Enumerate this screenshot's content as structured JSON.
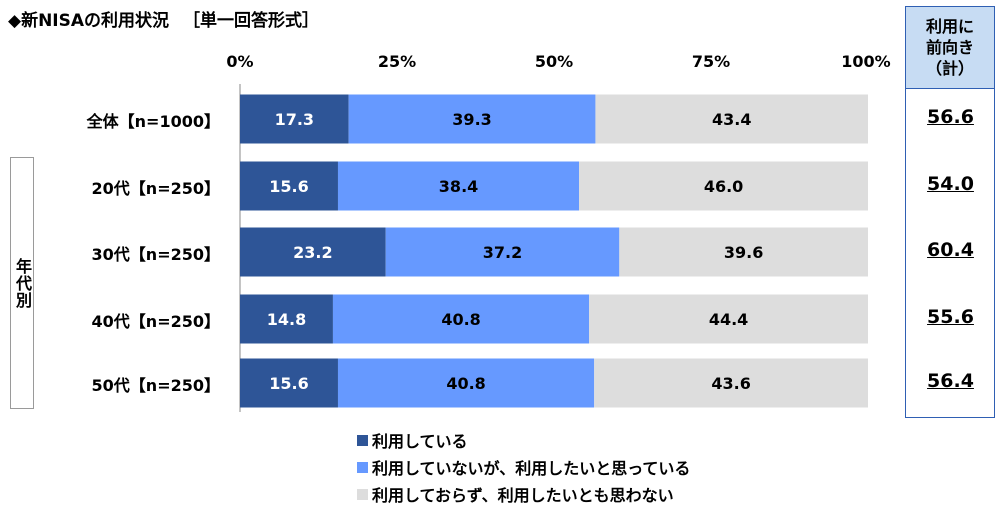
{
  "title": "◆新NISAの利用状況",
  "subtitle": "［単一回答形式］",
  "group_label": "年代別",
  "net_header": "利用に\n前向き\n（計）",
  "colors": {
    "using": "#2e5597",
    "want": "#6699ff",
    "not": "#dddddd",
    "net_header_bg": "#c7dcf3",
    "net_border": "#2f5fb3"
  },
  "chart_data": {
    "type": "bar",
    "orientation": "horizontal",
    "stacked": true,
    "xlim": [
      0,
      100
    ],
    "tick_labels": [
      "0%",
      "25%",
      "50%",
      "75%",
      "100%"
    ],
    "categories": [
      "全体【n=1000】",
      "20代【n=250】",
      "30代【n=250】",
      "40代【n=250】",
      "50代【n=250】"
    ],
    "series": [
      {
        "name": "利用している",
        "values": [
          17.3,
          15.6,
          23.2,
          14.8,
          15.6
        ],
        "labels": [
          "17.3",
          "15.6",
          "23.2",
          "14.8",
          "15.6"
        ]
      },
      {
        "name": "利用していないが、利用したいと思っている",
        "values": [
          39.3,
          38.4,
          37.2,
          40.8,
          40.8
        ],
        "labels": [
          "39.3",
          "38.4",
          "37.2",
          "40.8",
          "40.8"
        ]
      },
      {
        "name": "利用しておらず、利用したいとも思わない",
        "values": [
          43.4,
          46.0,
          39.6,
          44.4,
          43.6
        ],
        "labels": [
          "43.4",
          "46.0",
          "39.6",
          "44.4",
          "43.6"
        ]
      }
    ],
    "net_values": [
      "56.6",
      "54.0",
      "60.4",
      "55.6",
      "56.4"
    ],
    "legend": [
      "利用している",
      "利用していないが、利用したいと思っている",
      "利用しておらず、利用したいとも思わない"
    ]
  }
}
